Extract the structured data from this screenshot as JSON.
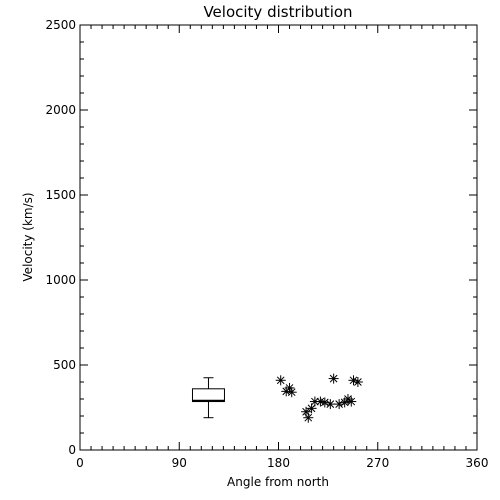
{
  "chart_data": {
    "type": "scatter",
    "title": "Velocity distribution",
    "xlabel": "Angle from north",
    "ylabel": "Velocity (km/s)",
    "xlim": [
      0,
      360
    ],
    "ylim": [
      0,
      2500
    ],
    "xticks": [
      0,
      90,
      180,
      270,
      360
    ],
    "yticks": [
      0,
      500,
      1000,
      1500,
      2000,
      2500
    ],
    "grid": false,
    "marker": "asterisk",
    "points": [
      {
        "x": 182,
        "y": 410
      },
      {
        "x": 187,
        "y": 345
      },
      {
        "x": 190,
        "y": 365
      },
      {
        "x": 192,
        "y": 340
      },
      {
        "x": 205,
        "y": 225
      },
      {
        "x": 207,
        "y": 190
      },
      {
        "x": 210,
        "y": 245
      },
      {
        "x": 213,
        "y": 285
      },
      {
        "x": 218,
        "y": 285
      },
      {
        "x": 222,
        "y": 280
      },
      {
        "x": 227,
        "y": 270
      },
      {
        "x": 230,
        "y": 420
      },
      {
        "x": 235,
        "y": 270
      },
      {
        "x": 240,
        "y": 280
      },
      {
        "x": 243,
        "y": 300
      },
      {
        "x": 246,
        "y": 285
      },
      {
        "x": 248,
        "y": 410
      },
      {
        "x": 252,
        "y": 400
      }
    ],
    "boxplot": {
      "x_left": 102,
      "x_right": 131,
      "whisker_low": 190,
      "q1": 285,
      "median": 290,
      "q3": 360,
      "whisker_high": 425
    }
  }
}
